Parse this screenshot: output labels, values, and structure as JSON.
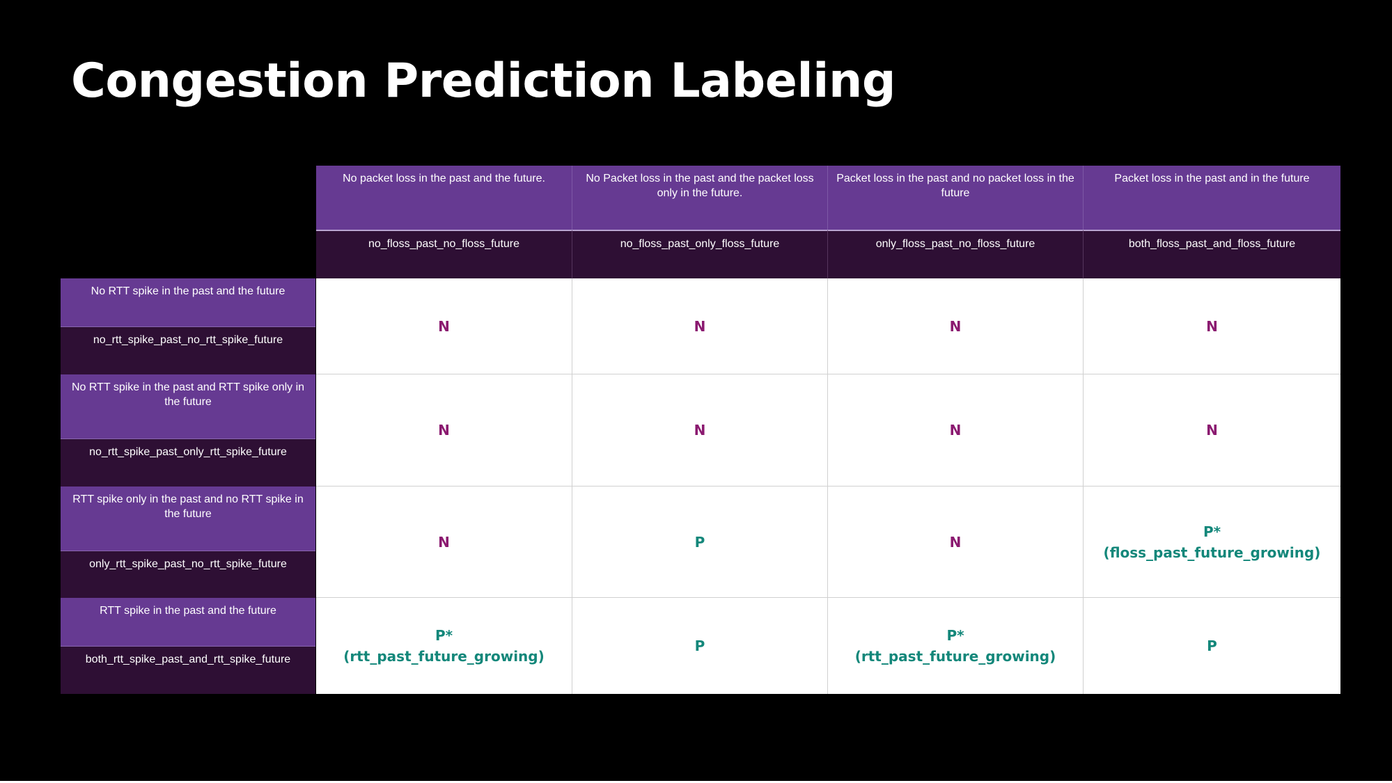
{
  "title": "Congestion Prediction Labeling",
  "colors": {
    "background": "#000000",
    "header_primary": "#663a92",
    "header_secondary": "#2e0f34",
    "negative_label": "#8b1a70",
    "positive_label": "#13877a"
  },
  "columns": [
    {
      "description": "No packet loss in the past and the future.",
      "key": "no_floss_past_no_floss_future"
    },
    {
      "description": "No Packet loss in the past and the packet loss only in the future.",
      "key": "no_floss_past_only_floss_future"
    },
    {
      "description": "Packet loss in the past and no packet loss in the future",
      "key": "only_floss_past_no_floss_future"
    },
    {
      "description": "Packet loss in the past and in the future",
      "key": "both_floss_past_and_floss_future"
    }
  ],
  "rows": [
    {
      "description": "No RTT spike in the past and the future",
      "key": "no_rtt_spike_past_no_rtt_spike_future",
      "cells": [
        {
          "label": "N",
          "note": ""
        },
        {
          "label": "N",
          "note": ""
        },
        {
          "label": "N",
          "note": ""
        },
        {
          "label": "N",
          "note": ""
        }
      ]
    },
    {
      "description": "No RTT spike in the past and RTT spike only in the future",
      "key": "no_rtt_spike_past_only_rtt_spike_future",
      "cells": [
        {
          "label": "N",
          "note": ""
        },
        {
          "label": "N",
          "note": ""
        },
        {
          "label": "N",
          "note": ""
        },
        {
          "label": "N",
          "note": ""
        }
      ]
    },
    {
      "description": "RTT spike only in the past and no RTT spike in the future",
      "key": "only_rtt_spike_past_no_rtt_spike_future",
      "cells": [
        {
          "label": "N",
          "note": ""
        },
        {
          "label": "P",
          "note": ""
        },
        {
          "label": "N",
          "note": ""
        },
        {
          "label": "P*",
          "note": "(floss_past_future_growing)"
        }
      ]
    },
    {
      "description": "RTT spike in the past and the future",
      "key": "both_rtt_spike_past_and_rtt_spike_future",
      "cells": [
        {
          "label": "P*",
          "note": "(rtt_past_future_growing)"
        },
        {
          "label": "P",
          "note": ""
        },
        {
          "label": "P*",
          "note": "(rtt_past_future_growing)"
        },
        {
          "label": "P",
          "note": ""
        }
      ]
    }
  ]
}
